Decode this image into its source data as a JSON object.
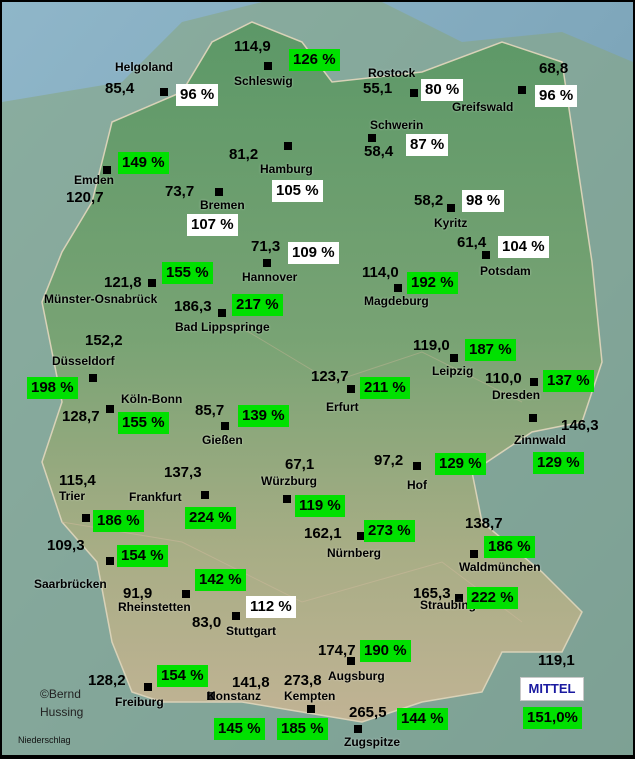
{
  "credit": {
    "line1": "©Bernd",
    "line2": "Hussing"
  },
  "footer_label": "Niederschlag",
  "mittel": {
    "label": "MITTEL",
    "percent": "151,0%",
    "value": "119,1"
  },
  "stations": [
    {
      "id": "helgoland",
      "name": "Helgoland",
      "value": "85,4",
      "percent": "96 %",
      "status": "white"
    },
    {
      "id": "schleswig",
      "name": "Schleswig",
      "value": "114,9",
      "percent": "126 %",
      "status": "green"
    },
    {
      "id": "rostock",
      "name": "Rostock",
      "value": "55,1",
      "percent": "80 %",
      "status": "white"
    },
    {
      "id": "greifswald",
      "name": "Greifswald",
      "value": "68,8",
      "percent": "96 %",
      "status": "white"
    },
    {
      "id": "schwerin",
      "name": "Schwerin",
      "value": "58,4",
      "percent": "87 %",
      "status": "white"
    },
    {
      "id": "hamburg",
      "name": "Hamburg",
      "value": "81,2",
      "percent": "105 %",
      "status": "white"
    },
    {
      "id": "emden",
      "name": "Emden",
      "value": "120,7",
      "percent": "149 %",
      "status": "green"
    },
    {
      "id": "bremen",
      "name": "Bremen",
      "value": "73,7",
      "percent": "107 %",
      "status": "white"
    },
    {
      "id": "kyritz",
      "name": "Kyritz",
      "value": "58,2",
      "percent": "98 %",
      "status": "white"
    },
    {
      "id": "potsdam",
      "name": "Potsdam",
      "value": "61,4",
      "percent": "104 %",
      "status": "white"
    },
    {
      "id": "hannover",
      "name": "Hannover",
      "value": "71,3",
      "percent": "109 %",
      "status": "white"
    },
    {
      "id": "muenster",
      "name": "Münster-Osnabrück",
      "value": "121,8",
      "percent": "155 %",
      "status": "green"
    },
    {
      "id": "magdeburg",
      "name": "Magdeburg",
      "value": "114,0",
      "percent": "192 %",
      "status": "green"
    },
    {
      "id": "lippspringe",
      "name": "Bad Lippspringe",
      "value": "186,3",
      "percent": "217 %",
      "status": "green"
    },
    {
      "id": "duesseldorf",
      "name": "Düsseldorf",
      "value": "152,2",
      "percent": "198 %",
      "status": "green"
    },
    {
      "id": "leipzig",
      "name": "Leipzig",
      "value": "119,0",
      "percent": "187 %",
      "status": "green"
    },
    {
      "id": "dresden",
      "name": "Dresden",
      "value": "110,0",
      "percent": "137 %",
      "status": "green"
    },
    {
      "id": "erfurt",
      "name": "Erfurt",
      "value": "123,7",
      "percent": "211 %",
      "status": "green"
    },
    {
      "id": "koelnbonn",
      "name": "Köln-Bonn",
      "value": "128,7",
      "percent": "155 %",
      "status": "green"
    },
    {
      "id": "giessen",
      "name": "Gießen",
      "value": "85,7",
      "percent": "139 %",
      "status": "green"
    },
    {
      "id": "zinnwald",
      "name": "Zinnwald",
      "value": "146,3",
      "percent": "129 %",
      "status": "green"
    },
    {
      "id": "hof",
      "name": "Hof",
      "value": "97,2",
      "percent": "129 %",
      "status": "green"
    },
    {
      "id": "wuerzburg",
      "name": "Würzburg",
      "value": "67,1",
      "percent": "119 %",
      "status": "green"
    },
    {
      "id": "frankfurt",
      "name": "Frankfurt",
      "value": "137,3",
      "percent": "224 %",
      "status": "green"
    },
    {
      "id": "trier",
      "name": "Trier",
      "value": "115,4",
      "percent": "186 %",
      "status": "green"
    },
    {
      "id": "nuernberg",
      "name": "Nürnberg",
      "value": "162,1",
      "percent": "273 %",
      "status": "green"
    },
    {
      "id": "waldmuenchen",
      "name": "Waldmünchen",
      "value": "138,7",
      "percent": "186 %",
      "status": "green"
    },
    {
      "id": "saarbruecken",
      "name": "Saarbrücken",
      "value": "109,3",
      "percent": "154 %",
      "status": "green"
    },
    {
      "id": "rheinstetten",
      "name": "Rheinstetten",
      "value": "91,9",
      "percent": "142 %",
      "status": "green"
    },
    {
      "id": "stuttgart",
      "name": "Stuttgart",
      "value": "83,0",
      "percent": "112 %",
      "status": "white"
    },
    {
      "id": "straubing",
      "name": "Straubing",
      "value": "165,3",
      "percent": "222 %",
      "status": "green"
    },
    {
      "id": "augsburg",
      "name": "Augsburg",
      "value": "174,7",
      "percent": "190 %",
      "status": "green"
    },
    {
      "id": "freiburg",
      "name": "Freiburg",
      "value": "128,2",
      "percent": "154 %",
      "status": "green"
    },
    {
      "id": "konstanz",
      "name": "Konstanz",
      "value": "141,8",
      "percent": "145 %",
      "status": "green"
    },
    {
      "id": "kempten",
      "name": "Kempten",
      "value": "273,8",
      "percent": "185 %",
      "status": "green"
    },
    {
      "id": "zugspitze",
      "name": "Zugspitze",
      "value": "265,5",
      "percent": "144 %",
      "status": "green"
    }
  ]
}
